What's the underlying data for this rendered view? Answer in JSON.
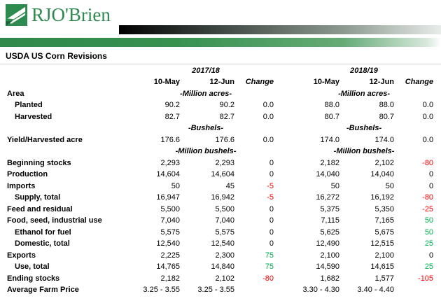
{
  "header": {
    "brand": "RJO'Brien",
    "title": "USDA US Corn Revisions"
  },
  "colors": {
    "brand_green": "#2e8b50",
    "positive": "#00b050",
    "negative": "#ff0000",
    "text": "#000000"
  },
  "table": {
    "groups": [
      "2017/18",
      "2018/19"
    ],
    "col_headers": [
      "10-May",
      "12-Jun",
      "Change"
    ],
    "rows": [
      {
        "type": "units",
        "label": "Area",
        "unit": "-Million acres-"
      },
      {
        "type": "data",
        "label": "Planted",
        "indent": 1,
        "values": [
          "90.2",
          "90.2",
          "0.0",
          "88.0",
          "88.0",
          "0.0"
        ],
        "change_colors": [
          "zero",
          "zero"
        ]
      },
      {
        "type": "data",
        "label": "Harvested",
        "indent": 1,
        "values": [
          "82.7",
          "82.7",
          "0.0",
          "80.7",
          "80.7",
          "0.0"
        ],
        "change_colors": [
          "zero",
          "zero"
        ]
      },
      {
        "type": "units",
        "label": "",
        "unit": "-Bushels-"
      },
      {
        "type": "data",
        "label": "Yield/Harvested acre",
        "indent": 0,
        "values": [
          "176.6",
          "176.6",
          "0.0",
          "174.0",
          "174.0",
          "0.0"
        ],
        "change_colors": [
          "zero",
          "zero"
        ]
      },
      {
        "type": "units",
        "label": "",
        "unit": "-Million bushels-"
      },
      {
        "type": "data",
        "label": "Beginning stocks",
        "indent": 0,
        "values": [
          "2,293",
          "2,293",
          "0",
          "2,182",
          "2,102",
          "-80"
        ],
        "change_colors": [
          "zero",
          "neg"
        ]
      },
      {
        "type": "data",
        "label": "Production",
        "indent": 0,
        "values": [
          "14,604",
          "14,604",
          "0",
          "14,040",
          "14,040",
          "0"
        ],
        "change_colors": [
          "zero",
          "zero"
        ]
      },
      {
        "type": "data",
        "label": "Imports",
        "indent": 0,
        "values": [
          "50",
          "45",
          "-5",
          "50",
          "50",
          "0"
        ],
        "change_colors": [
          "neg",
          "zero"
        ]
      },
      {
        "type": "data",
        "label": "Supply, total",
        "indent": 1,
        "values": [
          "16,947",
          "16,942",
          "-5",
          "16,272",
          "16,192",
          "-80"
        ],
        "change_colors": [
          "neg",
          "neg"
        ]
      },
      {
        "type": "data",
        "label": "Feed and residual",
        "indent": 0,
        "values": [
          "5,500",
          "5,500",
          "0",
          "5,375",
          "5,350",
          "-25"
        ],
        "change_colors": [
          "zero",
          "neg"
        ]
      },
      {
        "type": "data",
        "label": "Food, seed, industrial use",
        "indent": 0,
        "values": [
          "7,040",
          "7,040",
          "0",
          "7,115",
          "7,165",
          "50"
        ],
        "change_colors": [
          "zero",
          "pos"
        ]
      },
      {
        "type": "data",
        "label": "Ethanol for fuel",
        "indent": 1,
        "values": [
          "5,575",
          "5,575",
          "0",
          "5,625",
          "5,675",
          "50"
        ],
        "change_colors": [
          "zero",
          "pos"
        ]
      },
      {
        "type": "data",
        "label": "Domestic, total",
        "indent": 1,
        "values": [
          "12,540",
          "12,540",
          "0",
          "12,490",
          "12,515",
          "25"
        ],
        "change_colors": [
          "zero",
          "pos"
        ]
      },
      {
        "type": "data",
        "label": "Exports",
        "indent": 0,
        "values": [
          "2,225",
          "2,300",
          "75",
          "2,100",
          "2,100",
          "0"
        ],
        "change_colors": [
          "pos",
          "zero"
        ]
      },
      {
        "type": "data",
        "label": "Use, total",
        "indent": 1,
        "values": [
          "14,765",
          "14,840",
          "75",
          "14,590",
          "14,615",
          "25"
        ],
        "change_colors": [
          "pos",
          "pos"
        ]
      },
      {
        "type": "data",
        "label": "Ending stocks",
        "indent": 0,
        "values": [
          "2,182",
          "2,102",
          "-80",
          "1,682",
          "1,577",
          "-105"
        ],
        "change_colors": [
          "neg",
          "neg"
        ]
      },
      {
        "type": "data",
        "label": "Average Farm Price",
        "indent": 0,
        "values": [
          "3.25 - 3.55",
          "3.25 - 3.55",
          "",
          "3.30 - 4.30",
          "3.40 - 4.40",
          ""
        ],
        "change_colors": [
          "zero",
          "zero"
        ]
      }
    ]
  }
}
